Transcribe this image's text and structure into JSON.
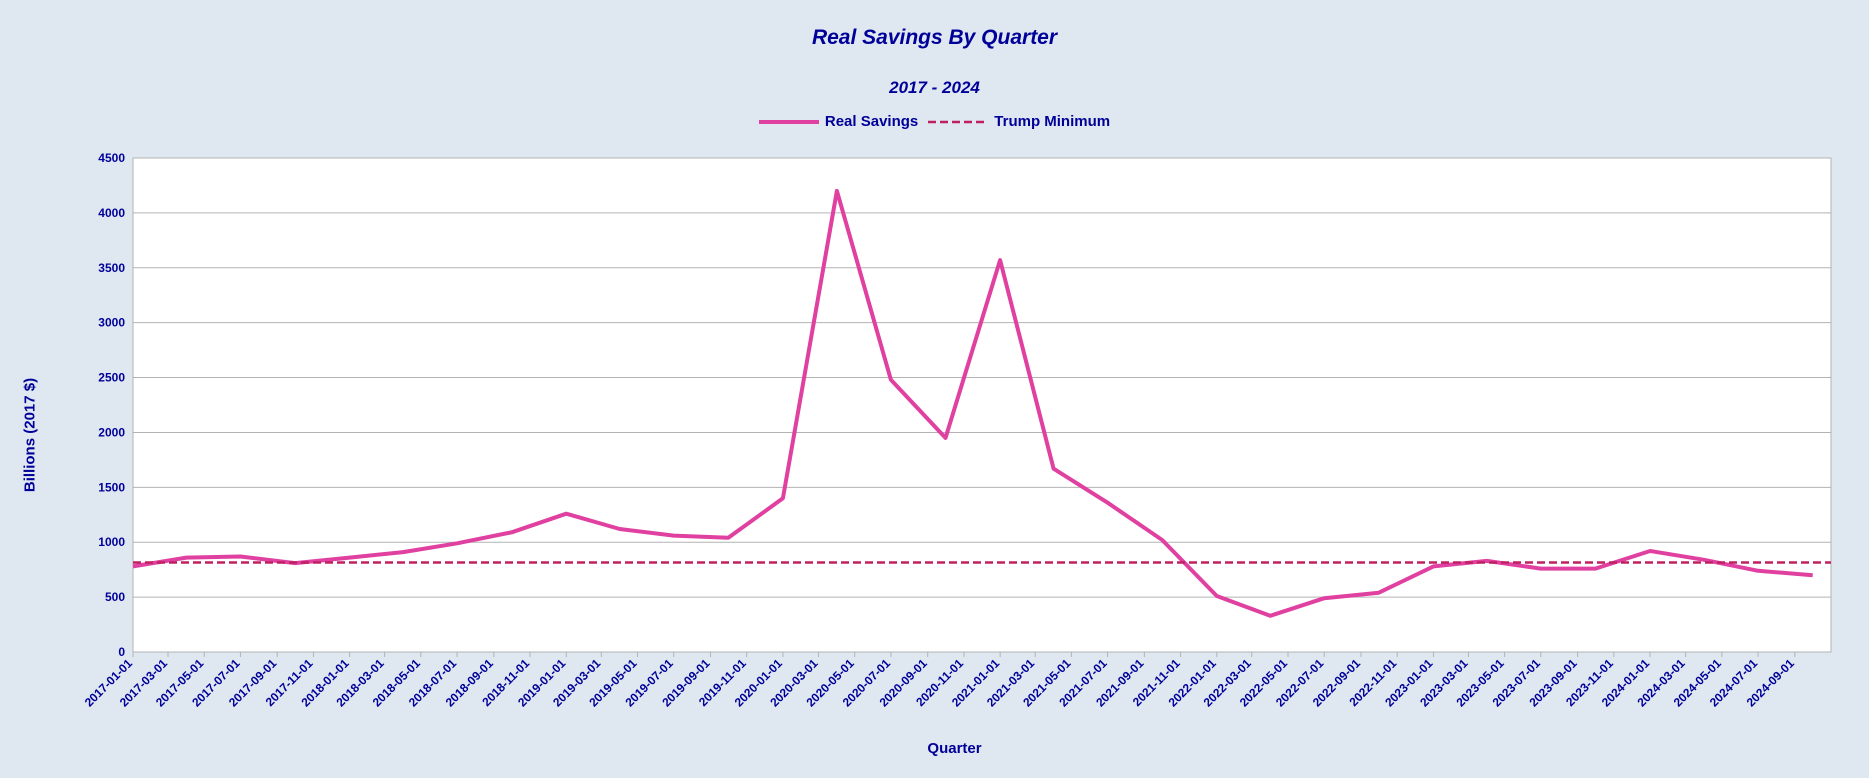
{
  "chart_data": {
    "type": "line",
    "title": "Real Savings By Quarter",
    "subtitle": "2017 - 2024",
    "xlabel": "Quarter",
    "ylabel": "Billions (2017 $)",
    "ylim": [
      0,
      4500
    ],
    "yticks": [
      0,
      500,
      1000,
      1500,
      2000,
      2500,
      3000,
      3500,
      4000,
      4500
    ],
    "grid": true,
    "legend_position": "top-center",
    "categories": [
      "2017-01-01",
      "2017-03-01",
      "2017-05-01",
      "2017-07-01",
      "2017-09-01",
      "2017-11-01",
      "2018-01-01",
      "2018-03-01",
      "2018-05-01",
      "2018-07-01",
      "2018-09-01",
      "2018-11-01",
      "2019-01-01",
      "2019-03-01",
      "2019-05-01",
      "2019-07-01",
      "2019-09-01",
      "2019-11-01",
      "2020-01-01",
      "2020-03-01",
      "2020-05-01",
      "2020-07-01",
      "2020-09-01",
      "2020-11-01",
      "2021-01-01",
      "2021-03-01",
      "2021-05-01",
      "2021-07-01",
      "2021-09-01",
      "2021-11-01",
      "2022-01-01",
      "2022-03-01",
      "2022-05-01",
      "2022-07-01",
      "2022-09-01",
      "2022-11-01",
      "2023-01-01",
      "2023-03-01",
      "2023-05-01",
      "2023-07-01",
      "2023-09-01",
      "2023-11-01",
      "2024-01-01",
      "2024-03-01",
      "2024-05-01",
      "2024-07-01",
      "2024-09-01"
    ],
    "series": [
      {
        "name": "Real Savings",
        "style": "solid",
        "color": "#e040a0",
        "x": [
          "2017-01-01",
          "2017-04-01",
          "2017-07-01",
          "2017-10-01",
          "2018-01-01",
          "2018-04-01",
          "2018-07-01",
          "2018-10-01",
          "2019-01-01",
          "2019-04-01",
          "2019-07-01",
          "2019-10-01",
          "2020-01-01",
          "2020-04-01",
          "2020-07-01",
          "2020-10-01",
          "2021-01-01",
          "2021-04-01",
          "2021-07-01",
          "2021-10-01",
          "2022-01-01",
          "2022-04-01",
          "2022-07-01",
          "2022-10-01",
          "2023-01-01",
          "2023-04-01",
          "2023-07-01",
          "2023-10-01",
          "2024-01-01",
          "2024-04-01",
          "2024-07-01",
          "2024-10-01"
        ],
        "values": [
          780,
          860,
          870,
          810,
          860,
          910,
          990,
          1090,
          1260,
          1120,
          1060,
          1040,
          1400,
          4200,
          2480,
          1950,
          3570,
          1670,
          1360,
          1020,
          510,
          330,
          490,
          540,
          780,
          830,
          760,
          760,
          920,
          840,
          740,
          700
        ]
      },
      {
        "name": "Trump Minimum",
        "style": "dashed",
        "color": "#c02060",
        "constant": 815
      }
    ]
  }
}
